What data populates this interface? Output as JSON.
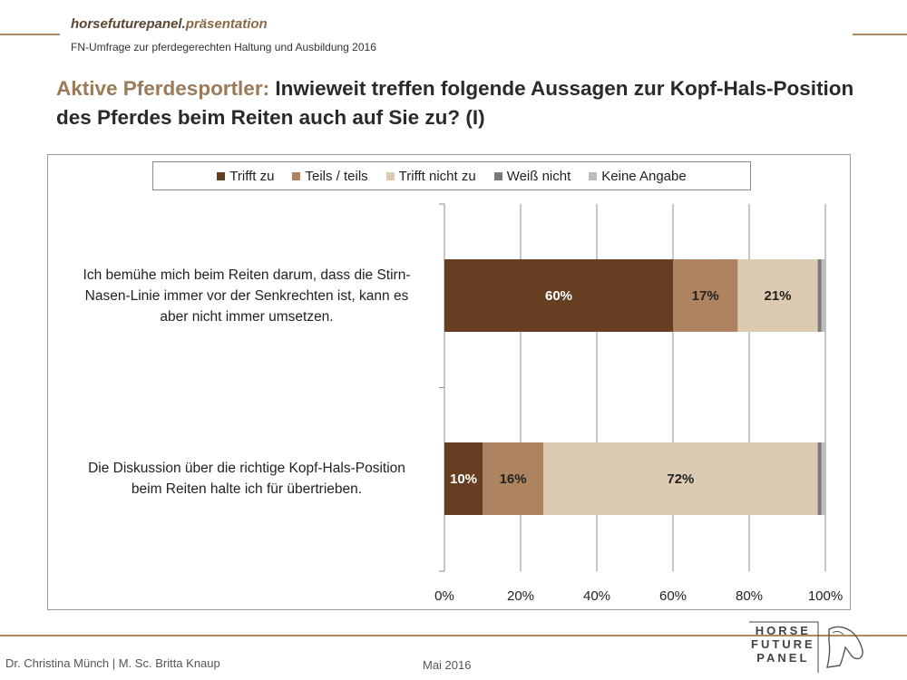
{
  "header": {
    "brand_main": "horsefuturepanel.",
    "brand_accent": "präsentation",
    "subtitle": "FN-Umfrage zur pferdegerechten Haltung und Ausbildung 2016",
    "headline_lead": "Aktive Pferdesportler:",
    "headline_rest": " Inwieweit treffen folgende Aussagen zur Kopf-Hals-Position des Pferdes beim Reiten auch auf Sie zu? (I)"
  },
  "chart_data": {
    "type": "bar",
    "orientation": "horizontal",
    "stacked": true,
    "categories": [
      "Ich bemühe mich beim Reiten darum, dass die Stirn-Nasen-Linie immer vor der Senkrechten ist, kann es aber nicht immer umsetzen.",
      "Die Diskussion über die richtige Kopf-Hals-Position beim Reiten halte ich für übertrieben."
    ],
    "category_lines": [
      [
        "Ich bemühe mich beim Reiten darum, dass die Stirn-",
        "Nasen-Linie immer vor der Senkrechten ist, kann es",
        "aber nicht immer umsetzen."
      ],
      [
        "Die Diskussion über die richtige Kopf-Hals-Position",
        "beim Reiten halte ich für übertrieben."
      ]
    ],
    "series": [
      {
        "name": "Trifft zu",
        "color": "#663f22",
        "values": [
          60,
          10
        ],
        "labels": [
          "60%",
          "10%"
        ],
        "label_color": "#ffffff"
      },
      {
        "name": "Teils / teils",
        "color": "#ae8460",
        "values": [
          17,
          16
        ],
        "labels": [
          "17%",
          "16%"
        ],
        "label_color": "#222222"
      },
      {
        "name": "Trifft nicht zu",
        "color": "#dccab3",
        "values": [
          21,
          72
        ],
        "labels": [
          "21%",
          "72%"
        ],
        "label_color": "#222222"
      },
      {
        "name": "Weiß nicht",
        "color": "#7a7a7a",
        "values": [
          1,
          1
        ],
        "labels": [
          "",
          ""
        ],
        "label_color": "#222222"
      },
      {
        "name": "Keine Angabe",
        "color": "#bdbdbd",
        "values": [
          1,
          1
        ],
        "labels": [
          "",
          ""
        ],
        "label_color": "#222222"
      }
    ],
    "xlim": [
      0,
      100
    ],
    "xticks": [
      "0%",
      "20%",
      "40%",
      "60%",
      "80%",
      "100%"
    ],
    "grid": true,
    "legend": "top"
  },
  "footer": {
    "authors": "Dr. Christina Münch | M. Sc. Britta Knaup",
    "date": "Mai 2016",
    "logo_lines": [
      "HORSE",
      "FUTURE",
      "PANEL"
    ]
  }
}
